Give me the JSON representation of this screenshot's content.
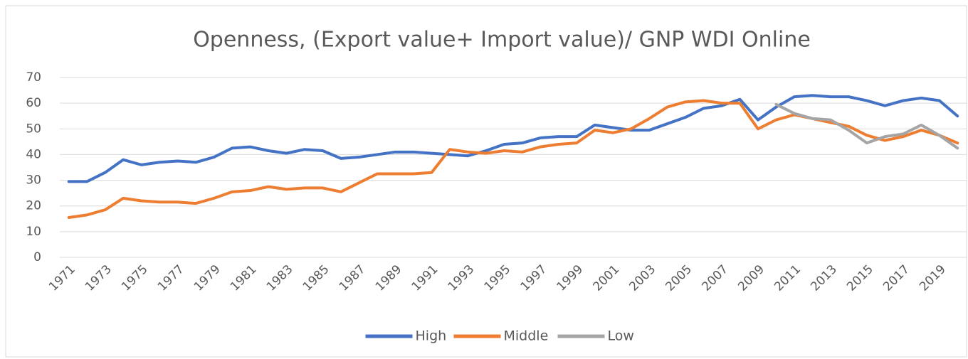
{
  "chart_data": {
    "type": "line",
    "title": "Openness, (Export value+ Import value)/ GNP   WDI Online",
    "categories": [
      "1971",
      null,
      "1973",
      null,
      "1975",
      null,
      "1977",
      null,
      "1979",
      null,
      "1981",
      null,
      "1983",
      null,
      "1985",
      null,
      "1987",
      null,
      "1989",
      null,
      "1991",
      null,
      "1993",
      null,
      "1995",
      null,
      "1997",
      null,
      "1999",
      null,
      "2001",
      null,
      "2003",
      null,
      "2005",
      null,
      "2007",
      null,
      "2009",
      null,
      "2011",
      null,
      "2013",
      null,
      "2015",
      null,
      "2017",
      null,
      "2019",
      null
    ],
    "series": [
      {
        "name": "High",
        "color": "#4472c4",
        "values": [
          29.5,
          29.5,
          33,
          38,
          36,
          37,
          37.5,
          37,
          39,
          42.5,
          43,
          41.5,
          40.5,
          42,
          41.5,
          38.5,
          39,
          40,
          41,
          41,
          40.5,
          40,
          39.5,
          41.5,
          44,
          44.5,
          46.5,
          47,
          47,
          51.5,
          50.5,
          49.5,
          49.5,
          52,
          54.5,
          58,
          59,
          61.5,
          53.5,
          58.5,
          62.5,
          63,
          62.5,
          62.5,
          61,
          59,
          61,
          62,
          61,
          55
        ]
      },
      {
        "name": "Middle",
        "color": "#ed7d31",
        "values": [
          15.5,
          16.5,
          18.5,
          23,
          22,
          21.5,
          21.5,
          21,
          23,
          25.5,
          26,
          27.5,
          26.5,
          27,
          27,
          25.5,
          29,
          32.5,
          32.5,
          32.5,
          33,
          42,
          41,
          40.5,
          41.5,
          41,
          43,
          44,
          44.5,
          49.5,
          48.5,
          50,
          54,
          58.5,
          60.5,
          61,
          60,
          60,
          50,
          53.5,
          55.5,
          54,
          52.5,
          51,
          47.5,
          45.5,
          47,
          49.5,
          47.5,
          44.5
        ]
      },
      {
        "name": "Low",
        "color": "#a5a5a5",
        "values": [
          null,
          null,
          null,
          null,
          null,
          null,
          null,
          null,
          null,
          null,
          null,
          null,
          null,
          null,
          null,
          null,
          null,
          null,
          null,
          null,
          null,
          null,
          null,
          null,
          null,
          null,
          null,
          null,
          null,
          null,
          null,
          null,
          null,
          null,
          null,
          null,
          null,
          null,
          null,
          59.5,
          56,
          54,
          53.5,
          49.5,
          44.5,
          47,
          48,
          51.5,
          47.5,
          42.5
        ]
      }
    ],
    "ylim": [
      0,
      70
    ],
    "yticks": [
      0,
      10,
      20,
      30,
      40,
      50,
      60,
      70
    ],
    "grid": true,
    "legend": "bottom"
  }
}
